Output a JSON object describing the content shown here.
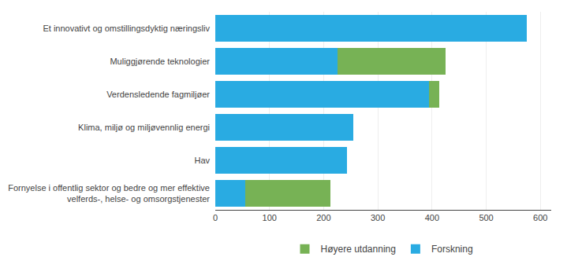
{
  "chart_data": {
    "type": "bar",
    "orientation": "horizontal",
    "stacked": true,
    "categories": [
      "Et innovativt og omstillingsdyktig næringsliv",
      "Muliggjørende teknologier",
      "Verdensledende fagmiljøer",
      "Klima, miljø og miljøvennlig energi",
      "Hav",
      "Fornyelse i offentlig sektor og bedre og mer effektive\nvelferds-, helse- og omsorgstjenester"
    ],
    "series": [
      {
        "name": "Forskning",
        "color": "#29abe2",
        "values": [
          575,
          225,
          395,
          255,
          243,
          55
        ]
      },
      {
        "name": "Høyere utdanning",
        "color": "#77b255",
        "values": [
          0,
          200,
          18,
          0,
          0,
          158
        ]
      }
    ],
    "xlim": [
      0,
      620
    ],
    "xticks": [
      0,
      100,
      200,
      300,
      400,
      500,
      600
    ],
    "grid": true,
    "legend": "bottom"
  }
}
